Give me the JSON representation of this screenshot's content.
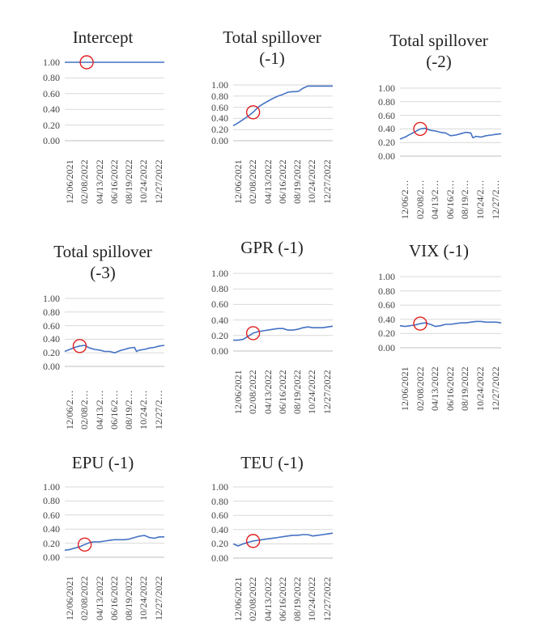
{
  "chart_data": [
    {
      "type": "line",
      "title": "Intercept",
      "yticks": [
        "0.00",
        "0.20",
        "0.40",
        "0.60",
        "0.80",
        "1.00"
      ],
      "xticks": [
        "12/06/2021",
        "02/08/2022",
        "04/13/2022",
        "06/16/2022",
        "08/19/2022",
        "10/24/2022",
        "12/27/2022"
      ],
      "ylim": [
        0,
        1
      ],
      "x": [
        0,
        0.2,
        0.4,
        0.6,
        0.8,
        1
      ],
      "values": [
        1.0,
        1.0,
        1.0,
        1.0,
        1.0,
        1.0
      ],
      "highlight": {
        "x": 0.22,
        "y": 1.0
      },
      "color": "#4472c4"
    },
    {
      "type": "line",
      "title": "Total spillover (-1)",
      "yticks": [
        "0.00",
        "0.20",
        "0.40",
        "0.60",
        "0.80",
        "1.00"
      ],
      "xticks": [
        "12/06/2021",
        "02/08/2022",
        "04/13/2022",
        "06/16/2022",
        "08/19/2022",
        "10/24/2022",
        "12/27/2022"
      ],
      "ylim": [
        0,
        1
      ],
      "x": [
        0,
        0.05,
        0.1,
        0.15,
        0.2,
        0.25,
        0.3,
        0.35,
        0.4,
        0.45,
        0.5,
        0.55,
        0.6,
        0.63,
        0.66,
        0.7,
        0.75,
        0.8,
        0.85,
        0.9,
        0.95,
        1
      ],
      "values": [
        0.27,
        0.32,
        0.38,
        0.44,
        0.51,
        0.6,
        0.66,
        0.71,
        0.76,
        0.8,
        0.83,
        0.87,
        0.88,
        0.88,
        0.89,
        0.94,
        0.98,
        0.98,
        0.98,
        0.98,
        0.98,
        0.98
      ],
      "highlight": {
        "x": 0.2,
        "y": 0.51
      },
      "color": "#4472c4"
    },
    {
      "type": "line",
      "title": "Total spillover (-2)",
      "yticks": [
        "0.00",
        "0.20",
        "0.40",
        "0.60",
        "0.80",
        "1.00"
      ],
      "xticks": [
        "12/06/2…",
        "02/08/2…",
        "04/13/2…",
        "06/16/2…",
        "08/19/2…",
        "10/24/2…",
        "12/27/2…"
      ],
      "ylim": [
        0,
        1
      ],
      "x": [
        0,
        0.05,
        0.1,
        0.15,
        0.2,
        0.25,
        0.3,
        0.35,
        0.4,
        0.45,
        0.5,
        0.55,
        0.6,
        0.65,
        0.7,
        0.72,
        0.75,
        0.8,
        0.85,
        0.9,
        0.95,
        1
      ],
      "values": [
        0.25,
        0.28,
        0.32,
        0.36,
        0.4,
        0.41,
        0.38,
        0.37,
        0.35,
        0.34,
        0.3,
        0.31,
        0.33,
        0.35,
        0.34,
        0.27,
        0.29,
        0.28,
        0.3,
        0.31,
        0.32,
        0.33
      ],
      "highlight": {
        "x": 0.2,
        "y": 0.4
      },
      "color": "#4472c4"
    },
    {
      "type": "line",
      "title": "Total spillover (-3)",
      "yticks": [
        "0.00",
        "0.20",
        "0.40",
        "0.60",
        "0.80",
        "1.00"
      ],
      "xticks": [
        "12/06/2…",
        "02/08/2…",
        "04/13/2…",
        "06/16/2…",
        "08/19/2…",
        "10/24/2…",
        "12/27/2…"
      ],
      "ylim": [
        0,
        1
      ],
      "x": [
        0,
        0.05,
        0.1,
        0.15,
        0.2,
        0.25,
        0.3,
        0.35,
        0.4,
        0.45,
        0.5,
        0.55,
        0.6,
        0.65,
        0.7,
        0.72,
        0.75,
        0.8,
        0.85,
        0.9,
        0.95,
        1
      ],
      "values": [
        0.22,
        0.25,
        0.28,
        0.3,
        0.31,
        0.27,
        0.25,
        0.24,
        0.22,
        0.22,
        0.2,
        0.23,
        0.25,
        0.27,
        0.28,
        0.22,
        0.24,
        0.25,
        0.27,
        0.28,
        0.3,
        0.31
      ],
      "highlight": {
        "x": 0.15,
        "y": 0.3
      },
      "color": "#4472c4"
    },
    {
      "type": "line",
      "title": "GPR (-1)",
      "yticks": [
        "0.00",
        "0.20",
        "0.40",
        "0.60",
        "0.80",
        "1.00"
      ],
      "xticks": [
        "12/06/2021",
        "02/08/2022",
        "04/13/2022",
        "06/16/2022",
        "08/19/2022",
        "10/24/2022",
        "12/27/2022"
      ],
      "ylim": [
        0,
        1
      ],
      "x": [
        0,
        0.05,
        0.1,
        0.15,
        0.2,
        0.25,
        0.3,
        0.35,
        0.4,
        0.45,
        0.5,
        0.55,
        0.6,
        0.65,
        0.7,
        0.75,
        0.8,
        0.85,
        0.9,
        0.95,
        1
      ],
      "values": [
        0.14,
        0.14,
        0.15,
        0.19,
        0.23,
        0.25,
        0.26,
        0.27,
        0.28,
        0.29,
        0.29,
        0.27,
        0.27,
        0.28,
        0.3,
        0.31,
        0.3,
        0.3,
        0.3,
        0.31,
        0.32
      ],
      "highlight": {
        "x": 0.2,
        "y": 0.23
      },
      "color": "#4472c4"
    },
    {
      "type": "line",
      "title": "VIX (-1)",
      "yticks": [
        "0.00",
        "0.20",
        "0.40",
        "0.60",
        "0.80",
        "1.00"
      ],
      "xticks": [
        "12/06/2021",
        "02/08/2022",
        "04/13/2022",
        "06/16/2022",
        "08/19/2022",
        "10/24/2022",
        "12/27/2022"
      ],
      "ylim": [
        0,
        1
      ],
      "x": [
        0,
        0.05,
        0.1,
        0.15,
        0.2,
        0.25,
        0.3,
        0.35,
        0.4,
        0.45,
        0.5,
        0.55,
        0.6,
        0.65,
        0.7,
        0.75,
        0.8,
        0.85,
        0.9,
        0.95,
        1
      ],
      "values": [
        0.31,
        0.3,
        0.31,
        0.32,
        0.34,
        0.35,
        0.33,
        0.3,
        0.31,
        0.33,
        0.33,
        0.34,
        0.35,
        0.35,
        0.36,
        0.37,
        0.37,
        0.36,
        0.36,
        0.36,
        0.35
      ],
      "highlight": {
        "x": 0.2,
        "y": 0.34
      },
      "color": "#4472c4"
    },
    {
      "type": "line",
      "title": "EPU (-1)",
      "yticks": [
        "0.00",
        "0.20",
        "0.40",
        "0.60",
        "0.80",
        "1.00"
      ],
      "xticks": [
        "12/06/2021",
        "02/08/2022",
        "04/13/2022",
        "06/16/2022",
        "08/19/2022",
        "10/24/2022",
        "12/27/2022"
      ],
      "ylim": [
        0,
        1
      ],
      "x": [
        0,
        0.05,
        0.1,
        0.15,
        0.2,
        0.25,
        0.3,
        0.35,
        0.4,
        0.45,
        0.5,
        0.55,
        0.6,
        0.65,
        0.7,
        0.75,
        0.8,
        0.85,
        0.9,
        0.95,
        1
      ],
      "values": [
        0.1,
        0.11,
        0.13,
        0.15,
        0.18,
        0.21,
        0.22,
        0.22,
        0.23,
        0.24,
        0.25,
        0.25,
        0.25,
        0.26,
        0.28,
        0.3,
        0.31,
        0.28,
        0.27,
        0.29,
        0.29
      ],
      "highlight": {
        "x": 0.2,
        "y": 0.18
      },
      "color": "#4472c4"
    },
    {
      "type": "line",
      "title": "TEU (-1)",
      "yticks": [
        "0.00",
        "0.20",
        "0.40",
        "0.60",
        "0.80",
        "1.00"
      ],
      "xticks": [
        "12/06/2021",
        "02/08/2022",
        "04/13/2022",
        "06/16/2022",
        "08/19/2022",
        "10/24/2022",
        "12/27/2022"
      ],
      "ylim": [
        0,
        1
      ],
      "x": [
        0,
        0.05,
        0.1,
        0.15,
        0.2,
        0.25,
        0.3,
        0.35,
        0.4,
        0.45,
        0.5,
        0.55,
        0.6,
        0.65,
        0.7,
        0.75,
        0.8,
        0.85,
        0.9,
        0.95,
        1
      ],
      "values": [
        0.2,
        0.17,
        0.2,
        0.22,
        0.24,
        0.25,
        0.26,
        0.27,
        0.28,
        0.29,
        0.3,
        0.31,
        0.32,
        0.32,
        0.33,
        0.33,
        0.31,
        0.32,
        0.33,
        0.34,
        0.35
      ],
      "highlight": {
        "x": 0.2,
        "y": 0.24
      },
      "color": "#4472c4"
    }
  ]
}
